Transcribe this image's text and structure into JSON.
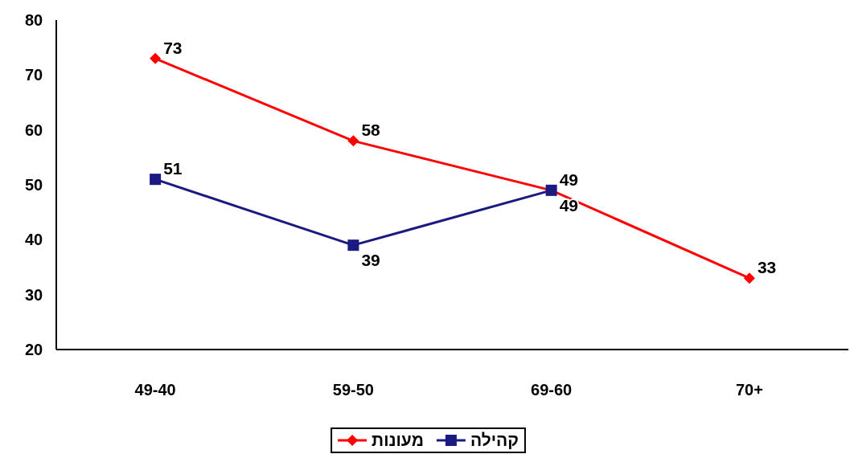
{
  "chart_data": {
    "type": "line",
    "categories": [
      "49-40",
      "59-50",
      "69-60",
      "70+"
    ],
    "series": [
      {
        "name": "מעונות",
        "color": "#ff0000",
        "marker": "diamond",
        "values": [
          73,
          58,
          49,
          33
        ]
      },
      {
        "name": "קהילה",
        "color": "#1a1a80",
        "marker": "square",
        "values": [
          51,
          39,
          49,
          null
        ]
      }
    ],
    "ylim": [
      20,
      80
    ],
    "yticks": [
      20,
      30,
      40,
      50,
      60,
      70,
      80
    ],
    "data_labels": true,
    "legend": "bottom",
    "grid": false
  }
}
